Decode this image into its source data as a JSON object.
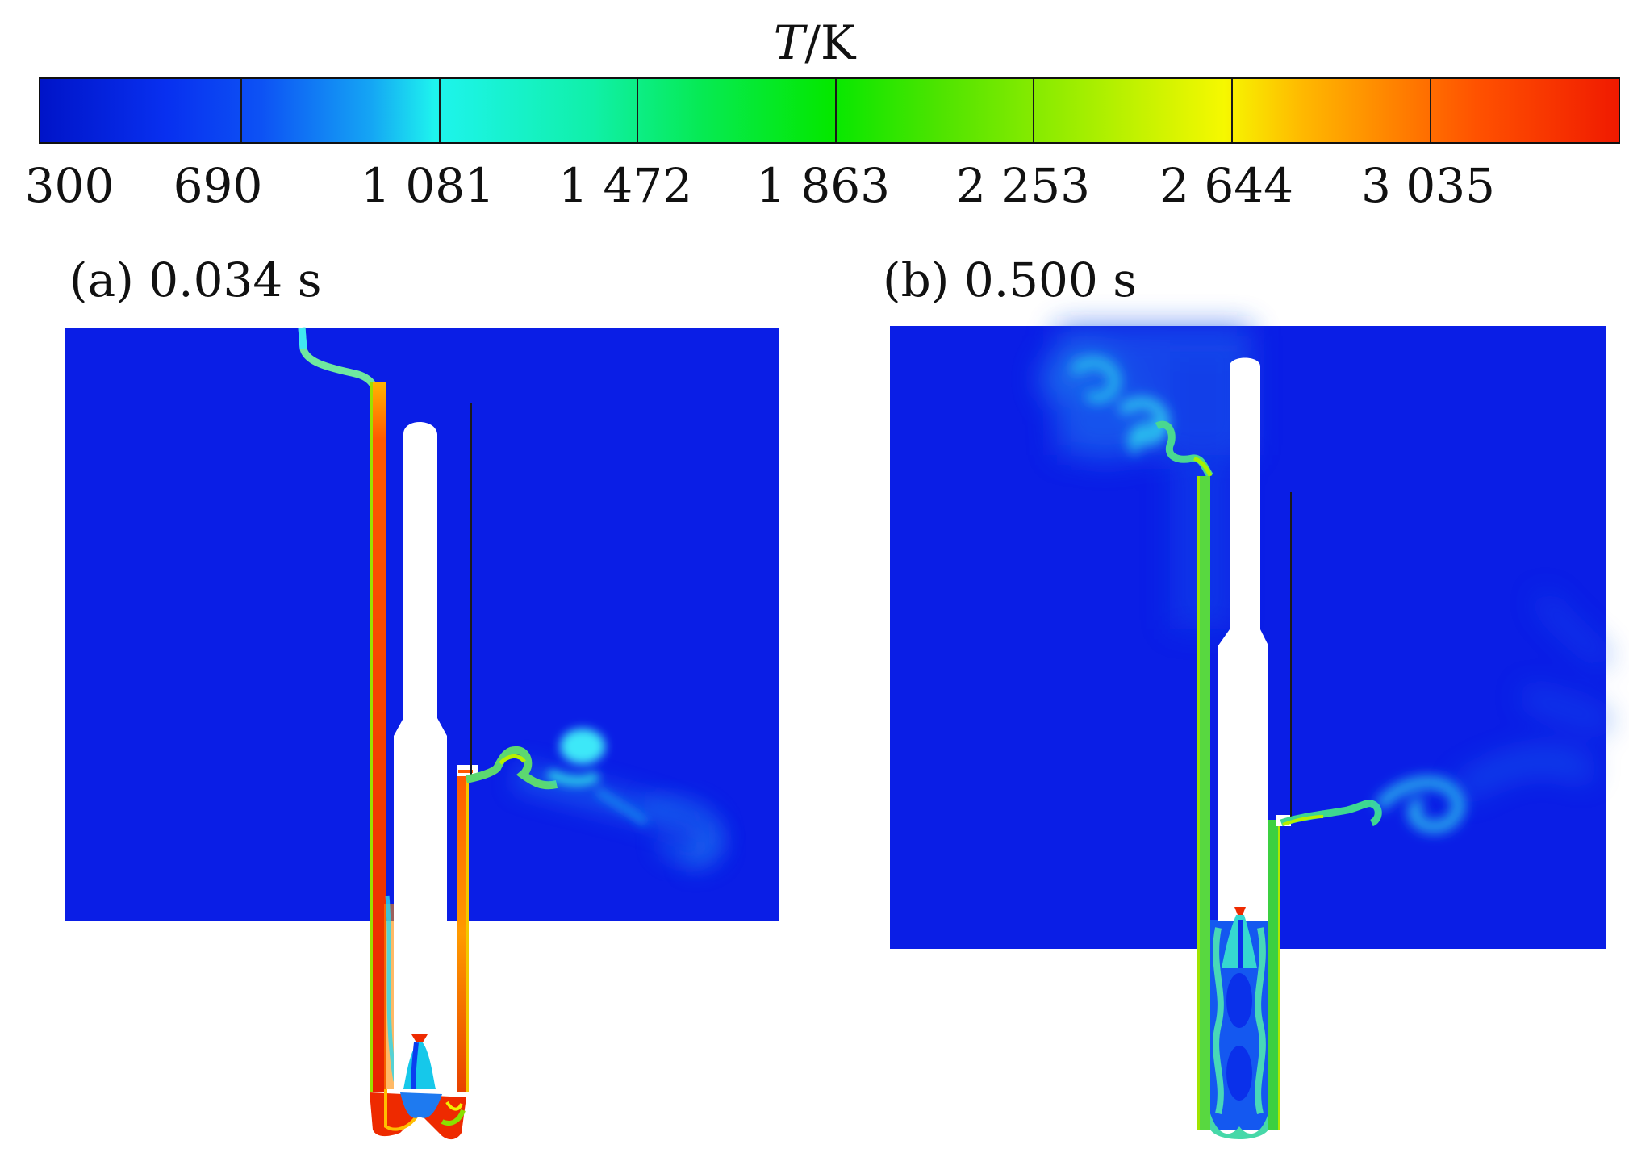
{
  "colorbar": {
    "variable": "T",
    "unit": "/K",
    "ticks": [
      "300",
      "690",
      "1 081",
      "1 472",
      "1 863",
      "2 253",
      "2 644",
      "3 035"
    ],
    "colors": {
      "low": "#0014c8",
      "mid": "#04e800",
      "high": "#f01a00"
    }
  },
  "panels": [
    {
      "label": "(a) 0.034 s"
    },
    {
      "label": "(b) 0.500 s"
    }
  ]
}
